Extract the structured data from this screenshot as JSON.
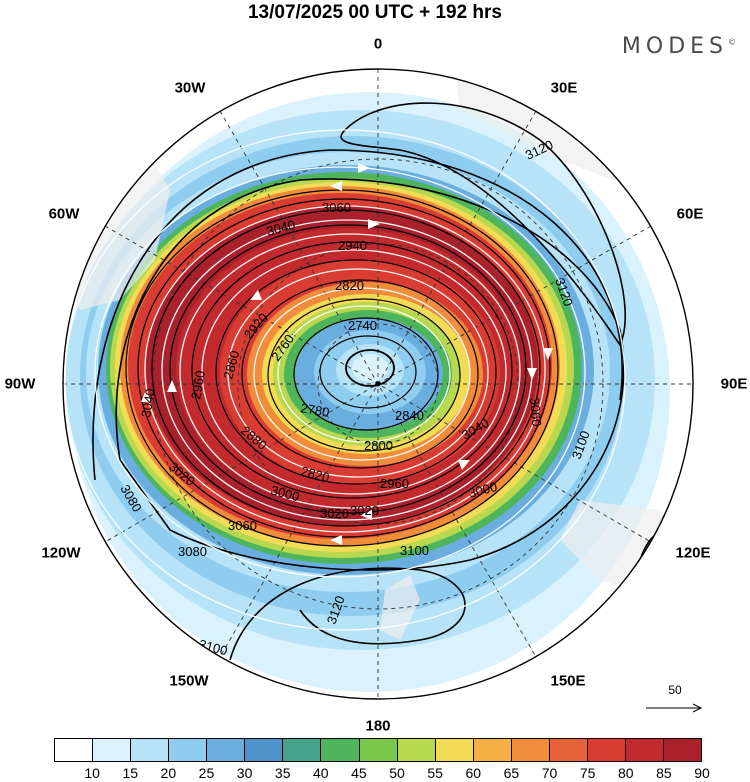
{
  "title": "13/07/2025  00 UTC  + 192 hrs",
  "brand": "MODES",
  "brand_mark": "©",
  "longitude_labels": {
    "top": "0",
    "top_right": "30E",
    "upper_right": "60E",
    "right": "90E",
    "lower_right": "120E",
    "bottom_right": "150E",
    "bottom": "180",
    "bottom_left": "150W",
    "lower_left": "120W",
    "left": "90W",
    "upper_left": "60W",
    "top_left": "30W"
  },
  "reference_vector": {
    "value": "50"
  },
  "colorbar": {
    "colors": [
      "#ffffff",
      "#d9f2fd",
      "#b7e3f8",
      "#8fcdf0",
      "#6aaee0",
      "#4f93cc",
      "#45a38a",
      "#4fb55c",
      "#79c64c",
      "#b7d84f",
      "#f3dc55",
      "#f4b045",
      "#f18c3a",
      "#e8633a",
      "#d93c33",
      "#c22a2e",
      "#a8212b"
    ],
    "tick_labels": [
      "10",
      "15",
      "20",
      "25",
      "30",
      "35",
      "40",
      "45",
      "50",
      "55",
      "60",
      "65",
      "70",
      "75",
      "80",
      "85",
      "90"
    ]
  },
  "contour_labels": [
    "3120",
    "3120",
    "3060",
    "3040",
    "2940",
    "2820",
    "2740",
    "2760",
    "2780",
    "2800",
    "2820",
    "2860",
    "2880",
    "2960",
    "3000",
    "3020",
    "3040",
    "3060",
    "3080",
    "3080",
    "3100",
    "3100",
    "3120",
    "3100",
    "3020",
    "3040",
    "3060",
    "3000",
    "2840",
    "2920",
    "2960",
    "3020"
  ]
}
